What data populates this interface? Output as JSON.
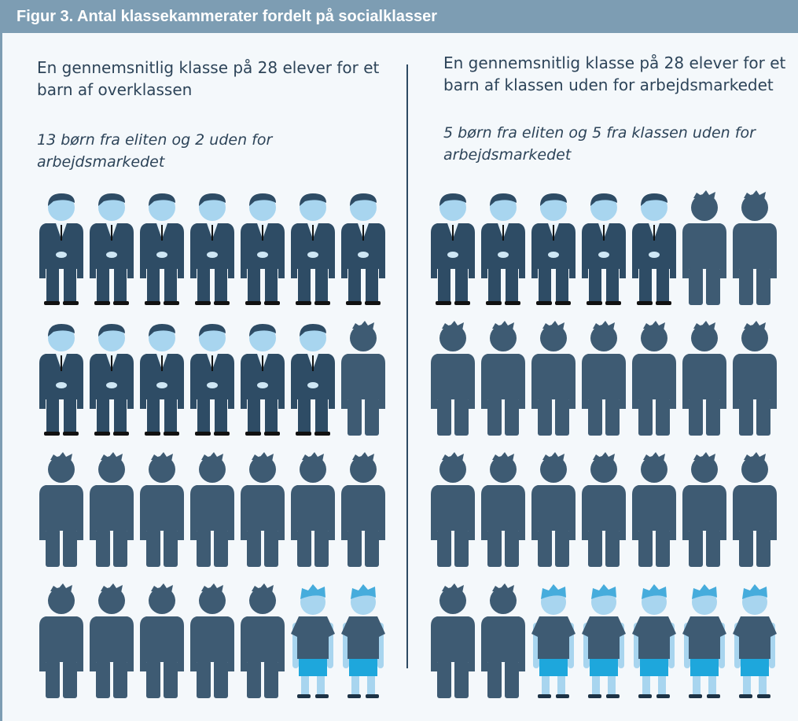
{
  "header": {
    "title": "Figur 3.  Antal klassekammerater fordelt på socialklasser"
  },
  "panels": [
    {
      "heading": "En gennemsnitlig klasse på 28 elever for et barn af overklassen",
      "subheading": "13 børn fra eliten og 2 uden for arbejdsmarkedet",
      "figures": [
        {
          "style": "suit",
          "count": 13
        },
        {
          "style": "plain",
          "count": 13
        },
        {
          "style": "casual",
          "count": 2
        }
      ]
    },
    {
      "heading": "En gennemsnitlig klasse på 28 elever for et barn af klassen uden for arbejdsmarkedet",
      "subheading": "5 børn fra eliten og 5 fra klassen uden for arbejdsmarkedet",
      "figures": [
        {
          "style": "suit",
          "count": 5
        },
        {
          "style": "plain",
          "count": 18
        },
        {
          "style": "casual",
          "count": 5
        }
      ]
    }
  ]
}
